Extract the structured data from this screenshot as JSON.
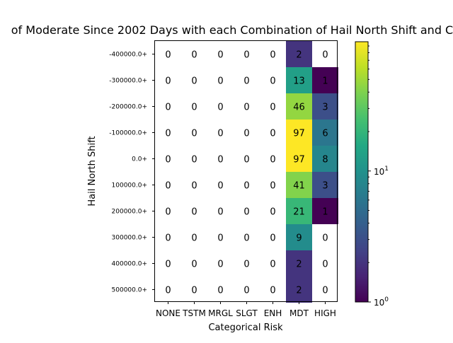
{
  "chart_data": {
    "type": "heatmap",
    "title": "of Moderate Since 2002 Days with each Combination of Hail North Shift and C",
    "xlabel": "Categorical Risk",
    "ylabel": "Hail North Shift",
    "x_categories": [
      "NONE",
      "TSTM",
      "MRGL",
      "SLGT",
      "ENH",
      "MDT",
      "HIGH"
    ],
    "y_categories": [
      "-400000.0+",
      "-300000.0+",
      "-200000.0+",
      "-100000.0+",
      "0.0+",
      "100000.0+",
      "200000.0+",
      "300000.0+",
      "400000.0+",
      "500000.0+"
    ],
    "values": [
      [
        0,
        0,
        0,
        0,
        0,
        2,
        0
      ],
      [
        0,
        0,
        0,
        0,
        0,
        13,
        1
      ],
      [
        0,
        0,
        0,
        0,
        0,
        46,
        3
      ],
      [
        0,
        0,
        0,
        0,
        0,
        97,
        6
      ],
      [
        0,
        0,
        0,
        0,
        0,
        97,
        8
      ],
      [
        0,
        0,
        0,
        0,
        0,
        41,
        3
      ],
      [
        0,
        0,
        0,
        0,
        0,
        21,
        1
      ],
      [
        0,
        0,
        0,
        0,
        0,
        9,
        0
      ],
      [
        0,
        0,
        0,
        0,
        0,
        2,
        0
      ],
      [
        0,
        0,
        0,
        0,
        0,
        2,
        0
      ]
    ],
    "colormap": "viridis",
    "color_scale": "log",
    "color_range": [
      1,
      97
    ],
    "zero_cells_color": "#ffffff",
    "colorbar": {
      "major_ticks": [
        {
          "value": 1,
          "base": "10",
          "exp": "0"
        },
        {
          "value": 10,
          "base": "10",
          "exp": "1"
        }
      ],
      "minor_ticks": [
        2,
        3,
        4,
        5,
        6,
        7,
        8,
        9,
        20,
        30,
        40,
        50,
        60,
        70,
        80,
        90
      ]
    },
    "grid": false
  }
}
